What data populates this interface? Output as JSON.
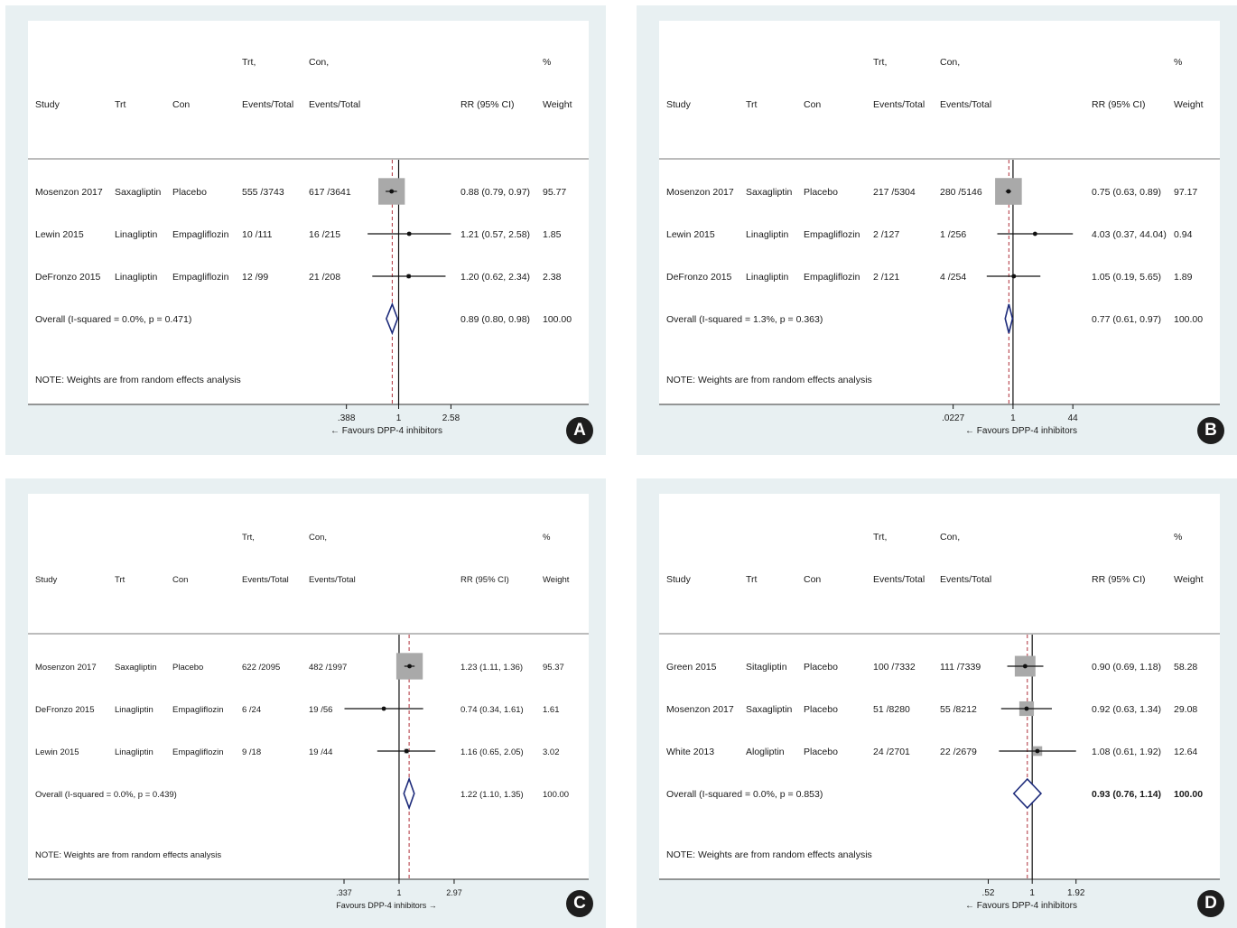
{
  "chart_data": [
    {
      "type": "forest",
      "panel_label": "A",
      "columns": {
        "study": "Study",
        "trt": "Trt",
        "con": "Con",
        "trt_head1": "Trt,",
        "trt_head2": "Events/Total",
        "con_head1": "Con,",
        "con_head2": "Events/Total",
        "rr": "RR (95% CI)",
        "w_head1": "%",
        "w_head2": "Weight"
      },
      "axis": {
        "scale": "log",
        "ticks": [
          {
            "value": 0.388,
            "label": ".388"
          },
          {
            "value": 1,
            "label": "1"
          },
          {
            "value": 2.58,
            "label": "2.58"
          }
        ],
        "xlabel": "← Favours DPP-4 inhibitors",
        "xlim": [
          0.193,
          6.0
        ]
      },
      "rows": [
        {
          "study": "Mosenzon 2017",
          "trt": "Saxagliptin",
          "con": "Placebo",
          "trt_events": "555 /3743",
          "con_events": "617 /3641",
          "rr_text": "0.88 (0.79, 0.97)",
          "weight": "95.77",
          "rr": 0.88,
          "lo": 0.79,
          "hi": 0.97,
          "w": 95.77
        },
        {
          "study": "Lewin 2015",
          "trt": "Linagliptin",
          "con": "Empagliflozin",
          "trt_events": "10 /111",
          "con_events": "16 /215",
          "rr_text": "1.21 (0.57, 2.58)",
          "weight": "1.85",
          "rr": 1.21,
          "lo": 0.57,
          "hi": 2.58,
          "w": 1.85
        },
        {
          "study": "DeFronzo 2015",
          "trt": "Linagliptin",
          "con": "Empagliflozin",
          "trt_events": "12 /99",
          "con_events": "21 /208",
          "rr_text": "1.20 (0.62, 2.34)",
          "weight": "2.38",
          "rr": 1.2,
          "lo": 0.62,
          "hi": 2.34,
          "w": 2.38
        }
      ],
      "overall": {
        "label": "Overall  (I-squared = 0.0%, p = 0.471)",
        "rr_text": "0.89 (0.80, 0.98)",
        "weight": "100.00",
        "rr": 0.89,
        "lo": 0.8,
        "hi": 0.98
      },
      "note": "NOTE: Weights are from random effects analysis"
    },
    {
      "type": "forest",
      "panel_label": "B",
      "columns": {
        "study": "Study",
        "trt": "Trt",
        "con": "Con",
        "trt_head1": "Trt,",
        "trt_head2": "Events/Total",
        "con_head1": "Con,",
        "con_head2": "Events/Total",
        "rr": "RR (95% CI)",
        "w_head1": "%",
        "w_head2": "Weight"
      },
      "axis": {
        "scale": "log",
        "ticks": [
          {
            "value": 0.0227,
            "label": ".0227"
          },
          {
            "value": 1,
            "label": "1"
          },
          {
            "value": 44,
            "label": "44"
          }
        ],
        "xlabel": "← Favours DPP-4 inhibitors",
        "xlim": [
          0.0093,
          1500
        ]
      },
      "rows": [
        {
          "study": "Mosenzon 2017",
          "trt": "Saxagliptin",
          "con": "Placebo",
          "trt_events": "217 /5304",
          "con_events": "280 /5146",
          "rr_text": "0.75 (0.63, 0.89)",
          "weight": "97.17",
          "rr": 0.75,
          "lo": 0.63,
          "hi": 0.89,
          "w": 97.17
        },
        {
          "study": "Lewin 2015",
          "trt": "Linagliptin",
          "con": "Empagliflozin",
          "trt_events": "2 /127",
          "con_events": "1 /256",
          "rr_text": "4.03 (0.37, 44.04)",
          "weight": "0.94",
          "rr": 4.03,
          "lo": 0.37,
          "hi": 44.04,
          "w": 0.94
        },
        {
          "study": "DeFronzo 2015",
          "trt": "Linagliptin",
          "con": "Empagliflozin",
          "trt_events": "2 /121",
          "con_events": "4 /254",
          "rr_text": "1.05 (0.19, 5.65)",
          "weight": "1.89",
          "rr": 1.05,
          "lo": 0.19,
          "hi": 5.65,
          "w": 1.89
        }
      ],
      "overall": {
        "label": "Overall  (I-squared = 1.3%, p = 0.363)",
        "rr_text": "0.77 (0.61, 0.97)",
        "weight": "100.00",
        "rr": 0.77,
        "lo": 0.61,
        "hi": 0.97
      },
      "note": "NOTE: Weights are from random effects analysis"
    },
    {
      "type": "forest",
      "panel_label": "C",
      "columns": {
        "study": "Study",
        "trt": "Trt",
        "con": "Con",
        "trt_head1": "Trt,",
        "trt_head2": "Events/Total",
        "con_head1": "Con,",
        "con_head2": "Events/Total",
        "rr": "RR (95% CI)",
        "w_head1": "%",
        "w_head2": "Weight"
      },
      "axis": {
        "scale": "log",
        "ticks": [
          {
            "value": 0.337,
            "label": ".337"
          },
          {
            "value": 1,
            "label": "1"
          },
          {
            "value": 2.97,
            "label": "2.97"
          }
        ],
        "xlabel": "Favours DPP-4 inhibitors →",
        "xlim": [
          0.165,
          7.0
        ]
      },
      "rows": [
        {
          "study": "Mosenzon 2017",
          "trt": "Saxagliptin",
          "con": "Placebo",
          "trt_events": "622 /2095",
          "con_events": "482 /1997",
          "rr_text": "1.23 (1.11, 1.36)",
          "weight": "95.37",
          "rr": 1.23,
          "lo": 1.11,
          "hi": 1.36,
          "w": 95.37
        },
        {
          "study": "DeFronzo 2015",
          "trt": "Linagliptin",
          "con": "Empagliflozin",
          "trt_events": "6 /24",
          "con_events": "19 /56",
          "rr_text": "0.74 (0.34, 1.61)",
          "weight": "1.61",
          "rr": 0.74,
          "lo": 0.34,
          "hi": 1.61,
          "w": 1.61
        },
        {
          "study": "Lewin 2015",
          "trt": "Linagliptin",
          "con": "Empagliflozin",
          "trt_events": "9 /18",
          "con_events": "19 /44",
          "rr_text": "1.16 (0.65, 2.05)",
          "weight": "3.02",
          "rr": 1.16,
          "lo": 0.65,
          "hi": 2.05,
          "w": 3.02
        }
      ],
      "overall": {
        "label": "Overall  (I-squared = 0.0%, p = 0.439)",
        "rr_text": "1.22 (1.10, 1.35)",
        "weight": "100.00",
        "rr": 1.22,
        "lo": 1.1,
        "hi": 1.35
      },
      "note": "NOTE: Weights are from random effects analysis"
    },
    {
      "type": "forest",
      "panel_label": "D",
      "columns": {
        "study": "Study",
        "trt": "Trt",
        "con": "Con",
        "trt_head1": "Trt,",
        "trt_head2": "Events/Total",
        "con_head1": "Con,",
        "con_head2": "Events/Total",
        "rr": "RR (95% CI)",
        "w_head1": "%",
        "w_head2": "Weight"
      },
      "axis": {
        "scale": "log",
        "ticks": [
          {
            "value": 0.52,
            "label": ".52"
          },
          {
            "value": 1,
            "label": "1"
          },
          {
            "value": 1.92,
            "label": "1.92"
          }
        ],
        "xlabel": "← Favours DPP-4 inhibitors",
        "xlim": [
          0.25,
          4.2
        ]
      },
      "rows": [
        {
          "study": "Green 2015",
          "trt": "Sitagliptin",
          "con": "Placebo",
          "trt_events": "100 /7332",
          "con_events": "111 /7339",
          "rr_text": "0.90 (0.69, 1.18)",
          "weight": "58.28",
          "rr": 0.9,
          "lo": 0.69,
          "hi": 1.18,
          "w": 58.28
        },
        {
          "study": "Mosenzon 2017",
          "trt": "Saxagliptin",
          "con": "Placebo",
          "trt_events": "51 /8280",
          "con_events": "55 /8212",
          "rr_text": "0.92 (0.63, 1.34)",
          "weight": "29.08",
          "rr": 0.92,
          "lo": 0.63,
          "hi": 1.34,
          "w": 29.08
        },
        {
          "study": "White 2013",
          "trt": "Alogliptin",
          "con": "Placebo",
          "trt_events": "24 /2701",
          "con_events": "22 /2679",
          "rr_text": "1.08 (0.61, 1.92)",
          "weight": "12.64",
          "rr": 1.08,
          "lo": 0.61,
          "hi": 1.92,
          "w": 12.64
        }
      ],
      "overall": {
        "label": "Overall  (I-squared = 0.0%, p = 0.853)",
        "rr_text": "0.93 (0.76, 1.14)",
        "weight": "100.00",
        "rr": 0.93,
        "lo": 0.76,
        "hi": 1.14
      },
      "note": "NOTE: Weights are from random effects analysis"
    }
  ]
}
